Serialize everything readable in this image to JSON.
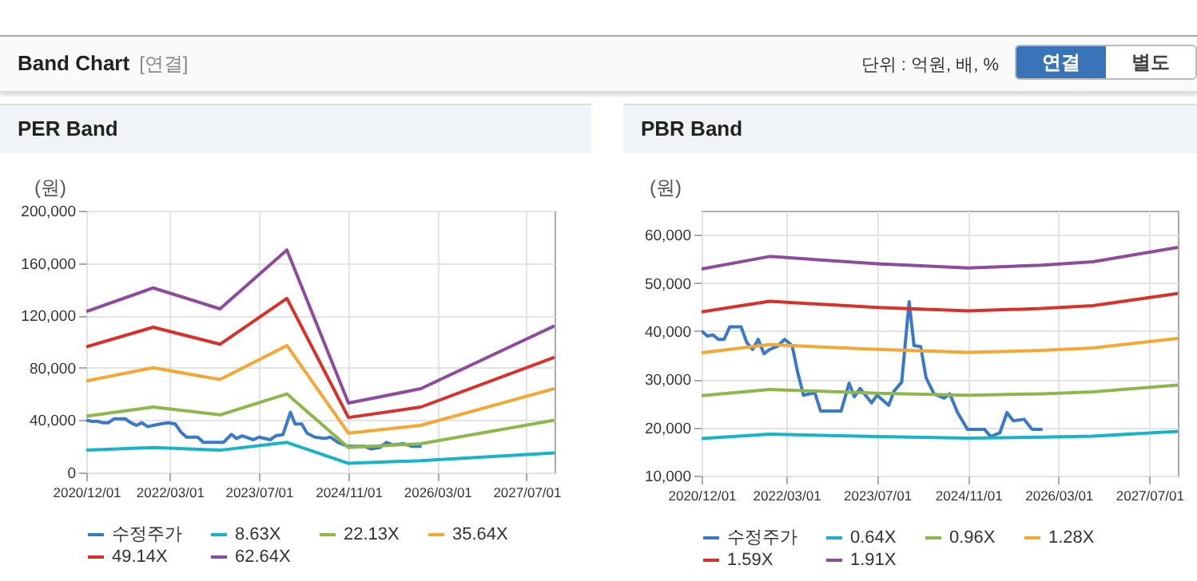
{
  "chart_data": [
    {
      "type": "other",
      "title": "Band Chart",
      "annotations": [
        "[연결]",
        "단위 : 억원, 배, %",
        "연결",
        "별도"
      ]
    },
    {
      "type": "line",
      "title": "PER Band",
      "ylabel": "(원)",
      "grid": true,
      "legend": "bottom",
      "xlim": [
        "2020-12-01",
        "2027-12-01"
      ],
      "xticks": [
        {
          "value": "2020-12-01",
          "label": "2020/12/01"
        },
        {
          "value": "2022-03-01",
          "label": "2022/03/01"
        },
        {
          "value": "2023-07-01",
          "label": "2023/07/01"
        },
        {
          "value": "2024-11-01",
          "label": "2024/11/01"
        },
        {
          "value": "2026-03-01",
          "label": "2026/03/01"
        },
        {
          "value": "2027-07-01",
          "label": "2027/07/01"
        }
      ],
      "ylim": [
        0,
        200000
      ],
      "yticks": [
        0,
        {
          "value": 40000,
          "label": "40,000"
        },
        {
          "value": 80000,
          "label": "80,000"
        },
        {
          "value": 120000,
          "label": "120,000"
        },
        {
          "value": 160000,
          "label": "160,000"
        },
        {
          "value": 200000,
          "label": "200,000"
        }
      ],
      "x": [
        "2020-12-01",
        "2021-12-01",
        "2022-12-01",
        "2023-12-01",
        "2024-11-01",
        "2025-12-01",
        "2027-12-01"
      ],
      "series": [
        {
          "name": "수정주가",
          "color": "#3a78c9",
          "x": [
            "2020-12-01",
            "2021-01-01",
            "2021-02-01",
            "2021-03-01",
            "2021-04-01",
            "2021-05-01",
            "2021-07-01",
            "2021-08-01",
            "2021-09-01",
            "2021-10-01",
            "2021-11-01",
            "2021-12-01",
            "2022-01-10",
            "2022-02-20",
            "2022-04-01",
            "2022-05-01",
            "2022-06-01",
            "2022-08-01",
            "2022-09-01",
            "2022-12-20",
            "2023-02-01",
            "2023-03-01",
            "2023-04-01",
            "2023-06-01",
            "2023-07-01",
            "2023-09-01",
            "2023-10-01",
            "2023-11-10",
            "2023-12-20",
            "2024-01-15",
            "2024-02-20",
            "2024-03-20",
            "2024-05-01",
            "2024-06-25",
            "2024-07-25",
            "2024-09-05",
            "2024-10-28",
            "2025-01-28",
            "2025-03-01",
            "2025-04-20",
            "2025-05-28",
            "2025-07-01",
            "2025-08-28",
            "2025-10-10",
            "2025-12-05"
          ],
          "values": [
            40000,
            39000,
            39000,
            38000,
            38000,
            41000,
            41000,
            38000,
            36000,
            38000,
            35000,
            36000,
            37000,
            38000,
            37000,
            31000,
            27000,
            27000,
            23000,
            23000,
            29000,
            26000,
            28000,
            25000,
            27000,
            25000,
            28000,
            29000,
            46000,
            37000,
            37000,
            30000,
            27000,
            26000,
            27000,
            23000,
            20000,
            20000,
            18000,
            19000,
            23000,
            21000,
            22000,
            20000,
            20000
          ]
        },
        {
          "name": "8.63X",
          "color": "#17b3c9",
          "values": [
            17000,
            19000,
            17000,
            23000,
            7000,
            9000,
            15000
          ]
        },
        {
          "name": "22.13X",
          "color": "#8cb84a",
          "values": [
            43000,
            50000,
            44000,
            60000,
            19000,
            22000,
            40000
          ]
        },
        {
          "name": "35.64X",
          "color": "#f5a733",
          "values": [
            70000,
            80000,
            71000,
            97000,
            30000,
            36000,
            64000
          ]
        },
        {
          "name": "49.14X",
          "color": "#d9312a",
          "values": [
            96000,
            111000,
            98000,
            133000,
            42000,
            50000,
            88000
          ]
        },
        {
          "name": "62.64X",
          "color": "#8e4a9c",
          "values": [
            123000,
            141000,
            125000,
            170000,
            53000,
            64000,
            112000
          ]
        }
      ]
    },
    {
      "type": "line",
      "title": "PBR Band",
      "ylabel": "(원)",
      "grid": true,
      "legend": "bottom",
      "xlim": [
        "2020-12-01",
        "2027-12-01"
      ],
      "xticks": [
        {
          "value": "2020-12-01",
          "label": "2020/12/01"
        },
        {
          "value": "2022-03-01",
          "label": "2022/03/01"
        },
        {
          "value": "2023-07-01",
          "label": "2023/07/01"
        },
        {
          "value": "2024-11-01",
          "label": "2024/11/01"
        },
        {
          "value": "2026-03-01",
          "label": "2026/03/01"
        },
        {
          "value": "2027-07-01",
          "label": "2027/07/01"
        }
      ],
      "ylim": [
        10000,
        65000
      ],
      "yticks": [
        {
          "value": 10000,
          "label": "10,000"
        },
        {
          "value": 20000,
          "label": "20,000"
        },
        {
          "value": 30000,
          "label": "30,000"
        },
        {
          "value": 40000,
          "label": "40,000"
        },
        {
          "value": 50000,
          "label": "50,000"
        },
        {
          "value": 60000,
          "label": "60,000"
        }
      ],
      "x": [
        "2020-12-01",
        "2021-12-01",
        "2023-07-01",
        "2024-11-01",
        "2025-12-01",
        "2026-09-01",
        "2027-12-01"
      ],
      "series": [
        {
          "name": "수정주가",
          "color": "#3a78c9",
          "x": [
            "2020-12-01",
            "2021-01-01",
            "2021-02-01",
            "2021-03-01",
            "2021-04-01",
            "2021-05-01",
            "2021-07-01",
            "2021-08-01",
            "2021-09-01",
            "2021-10-01",
            "2021-11-01",
            "2021-12-01",
            "2022-01-10",
            "2022-02-20",
            "2022-04-01",
            "2022-05-01",
            "2022-06-01",
            "2022-08-01",
            "2022-09-01",
            "2022-12-20",
            "2023-02-01",
            "2023-03-01",
            "2023-04-01",
            "2023-06-01",
            "2023-07-01",
            "2023-09-01",
            "2023-10-01",
            "2023-11-10",
            "2023-12-20",
            "2024-01-15",
            "2024-02-20",
            "2024-03-20",
            "2024-05-01",
            "2024-06-25",
            "2024-07-25",
            "2024-09-05",
            "2024-10-28",
            "2025-01-28",
            "2025-03-01",
            "2025-04-20",
            "2025-05-28",
            "2025-07-01",
            "2025-08-28",
            "2025-10-10",
            "2025-12-05"
          ],
          "values": [
            40000,
            39000,
            39200,
            38300,
            38300,
            40900,
            40900,
            37600,
            36200,
            38300,
            35300,
            36200,
            36800,
            38300,
            37000,
            31400,
            26700,
            27200,
            23400,
            23400,
            29200,
            26400,
            28100,
            25100,
            26700,
            24600,
            27600,
            29400,
            46100,
            37000,
            36800,
            30300,
            27000,
            26100,
            27000,
            23100,
            19600,
            19600,
            18100,
            18900,
            23100,
            21400,
            21700,
            19600,
            19600
          ]
        },
        {
          "name": "0.64X",
          "color": "#17b3c9",
          "values": [
            17700,
            18600,
            18100,
            17800,
            18000,
            18200,
            19200
          ]
        },
        {
          "name": "0.96X",
          "color": "#8cb84a",
          "values": [
            26600,
            27900,
            27100,
            26700,
            27000,
            27400,
            28800
          ]
        },
        {
          "name": "1.28X",
          "color": "#f5a733",
          "values": [
            35500,
            37200,
            36200,
            35600,
            36000,
            36500,
            38500
          ]
        },
        {
          "name": "1.59X",
          "color": "#d9312a",
          "values": [
            44000,
            46200,
            44900,
            44200,
            44700,
            45300,
            47800
          ]
        },
        {
          "name": "1.91X",
          "color": "#8e4a9c",
          "values": [
            52900,
            55500,
            54000,
            53100,
            53700,
            54400,
            57400
          ]
        }
      ]
    }
  ]
}
